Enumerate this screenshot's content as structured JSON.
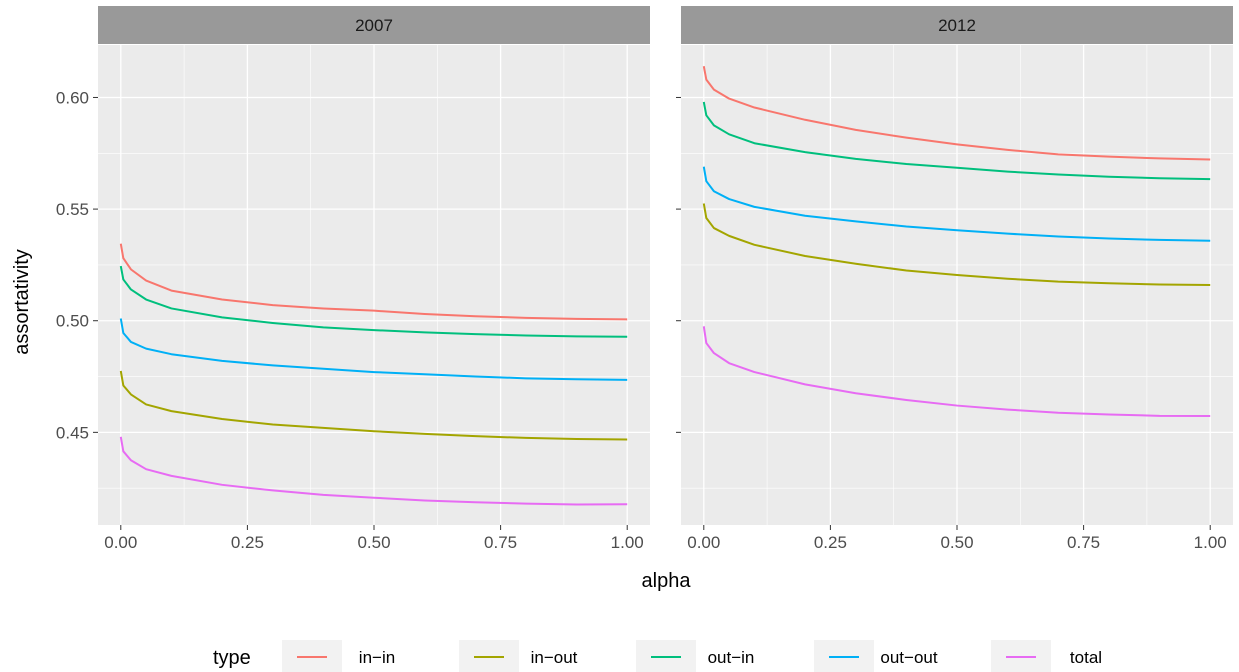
{
  "chart_data": {
    "type": "line",
    "xlabel": "alpha",
    "ylabel": "assortativity",
    "xlim": [
      -0.045,
      1.045
    ],
    "ylim": [
      0.4085,
      0.6235
    ],
    "x_ticks": [
      0.0,
      0.25,
      0.5,
      0.75,
      1.0
    ],
    "x_tick_labels": [
      "0.00",
      "0.25",
      "0.50",
      "0.75",
      "1.00"
    ],
    "y_ticks": [
      0.45,
      0.5,
      0.55,
      0.6
    ],
    "y_tick_labels": [
      "0.45",
      "0.50",
      "0.55",
      "0.60"
    ],
    "grid": true,
    "legend": {
      "title": "type",
      "position": "bottom",
      "entries": [
        "in−in",
        "in−out",
        "out−in",
        "out−out",
        "total"
      ]
    },
    "colors": {
      "in-in": "#F8766D",
      "in-out": "#A3A500",
      "out-in": "#00BF7D",
      "out-out": "#00B0F6",
      "total": "#E76BF3"
    },
    "x": [
      0.0,
      0.005,
      0.02,
      0.05,
      0.1,
      0.2,
      0.3,
      0.4,
      0.5,
      0.6,
      0.7,
      0.8,
      0.9,
      1.0
    ],
    "panels": [
      {
        "strip": "2007",
        "series": [
          {
            "name": "in−in",
            "key": "in-in",
            "values": [
              0.5345,
              0.528,
              0.523,
              0.518,
              0.5135,
              0.5095,
              0.507,
              0.5055,
              0.5045,
              0.503,
              0.502,
              0.5013,
              0.5008,
              0.5006
            ]
          },
          {
            "name": "in−out",
            "key": "in-out",
            "values": [
              0.4775,
              0.471,
              0.467,
              0.4625,
              0.4595,
              0.456,
              0.4535,
              0.452,
              0.4505,
              0.4493,
              0.4483,
              0.4475,
              0.447,
              0.4468
            ]
          },
          {
            "name": "out−in",
            "key": "out-in",
            "values": [
              0.5245,
              0.5185,
              0.514,
              0.5095,
              0.5055,
              0.5015,
              0.499,
              0.497,
              0.4958,
              0.4948,
              0.494,
              0.4934,
              0.493,
              0.4928
            ]
          },
          {
            "name": "out−out",
            "key": "out-out",
            "values": [
              0.501,
              0.4945,
              0.4905,
              0.4875,
              0.485,
              0.482,
              0.48,
              0.4785,
              0.477,
              0.476,
              0.475,
              0.4742,
              0.4738,
              0.4735
            ]
          },
          {
            "name": "total",
            "key": "total",
            "values": [
              0.448,
              0.4415,
              0.4375,
              0.4335,
              0.4305,
              0.4265,
              0.424,
              0.422,
              0.4207,
              0.4195,
              0.4187,
              0.4181,
              0.4177,
              0.4178
            ]
          }
        ]
      },
      {
        "strip": "2012",
        "series": [
          {
            "name": "in−in",
            "key": "in-in",
            "values": [
              0.614,
              0.608,
              0.6035,
              0.5995,
              0.5955,
              0.59,
              0.5855,
              0.582,
              0.579,
              0.5765,
              0.5745,
              0.5735,
              0.5727,
              0.5722
            ]
          },
          {
            "name": "in−out",
            "key": "in-out",
            "values": [
              0.5525,
              0.546,
              0.5415,
              0.538,
              0.534,
              0.529,
              0.5255,
              0.5225,
              0.5205,
              0.5188,
              0.5175,
              0.5168,
              0.5162,
              0.516
            ]
          },
          {
            "name": "out−in",
            "key": "out-in",
            "values": [
              0.598,
              0.592,
              0.5875,
              0.5835,
              0.5795,
              0.5755,
              0.5725,
              0.5702,
              0.5685,
              0.5668,
              0.5655,
              0.5645,
              0.5638,
              0.5634
            ]
          },
          {
            "name": "out−out",
            "key": "out-out",
            "values": [
              0.569,
              0.5625,
              0.558,
              0.5545,
              0.551,
              0.547,
              0.5445,
              0.5422,
              0.5405,
              0.539,
              0.5377,
              0.5368,
              0.5362,
              0.5358
            ]
          },
          {
            "name": "total",
            "key": "total",
            "values": [
              0.4975,
              0.49,
              0.4855,
              0.481,
              0.477,
              0.4715,
              0.4675,
              0.4645,
              0.462,
              0.4602,
              0.4588,
              0.458,
              0.4574,
              0.4573
            ]
          }
        ]
      }
    ]
  }
}
